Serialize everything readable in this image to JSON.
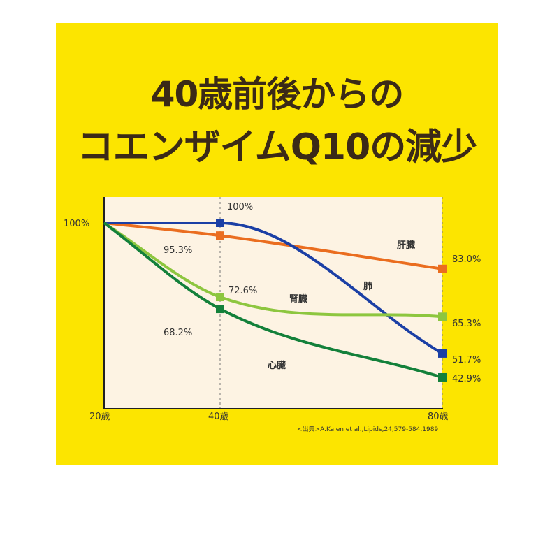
{
  "title_line1": "40歳前後からの",
  "title_line2": "コエンザイムQ10の減少",
  "source": "<出典>A.Kalen et al.,Lipids,24,579-584,1989",
  "colors": {
    "background": "#fce500",
    "plot_bg": "#fdf3e3",
    "title": "#3b2a17"
  },
  "chart_data": {
    "type": "line",
    "x": [
      20,
      40,
      80
    ],
    "x_tick_labels": [
      "20歳",
      "40歳",
      "80歳"
    ],
    "y_tick_labels": [
      "100%"
    ],
    "grid": "dashed vertical lines at 40歳 and 80歳",
    "series": [
      {
        "name": "肝臓",
        "color": "#ea6d1f",
        "values": [
          100,
          95.3,
          83.0
        ],
        "labels": [
          "",
          "95.3%",
          "83.0%"
        ]
      },
      {
        "name": "肺",
        "color": "#1b3fa5",
        "values": [
          100,
          100,
          51.7
        ],
        "labels": [
          "",
          "100%",
          "51.7%"
        ]
      },
      {
        "name": "腎臓",
        "color": "#8dc63f",
        "values": [
          100,
          72.6,
          65.3
        ],
        "labels": [
          "",
          "72.6%",
          "65.3%"
        ]
      },
      {
        "name": "心臓",
        "color": "#13803a",
        "values": [
          100,
          68.2,
          42.9
        ],
        "labels": [
          "",
          "68.2%",
          "42.9%"
        ]
      }
    ]
  }
}
